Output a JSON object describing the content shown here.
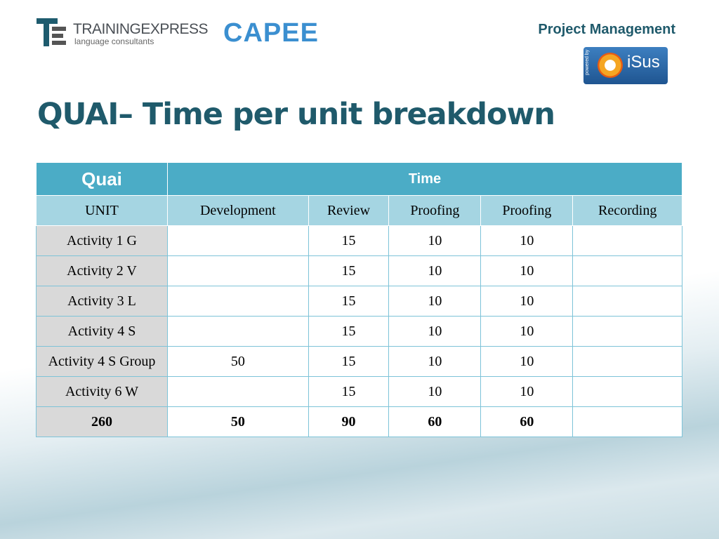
{
  "header": {
    "logo_name": "TRAININGEXPRESS",
    "logo_tagline": "language consultants",
    "partner": "CAPEE",
    "section": "Project Management",
    "badge_small": "powered by",
    "badge_name": "iSus"
  },
  "title": "QUAI– Time per unit breakdown",
  "table": {
    "group_header": [
      "Quai",
      "Time"
    ],
    "columns": [
      "UNIT",
      "Development",
      "Review",
      "Proofing",
      "Proofing",
      "Recording"
    ],
    "rows": [
      [
        "Activity 1 G",
        null,
        15,
        10,
        10,
        null
      ],
      [
        "Activity 2 V",
        null,
        15,
        10,
        10,
        null
      ],
      [
        "Activity 3 L",
        null,
        15,
        10,
        10,
        null
      ],
      [
        "Activity 4 S",
        null,
        15,
        10,
        10,
        null
      ],
      [
        "Activity 4 S Group",
        50,
        15,
        10,
        10,
        null
      ],
      [
        "Activity 6 W",
        null,
        15,
        10,
        10,
        null
      ]
    ],
    "total": [
      260,
      50,
      90,
      60,
      60,
      null
    ]
  }
}
